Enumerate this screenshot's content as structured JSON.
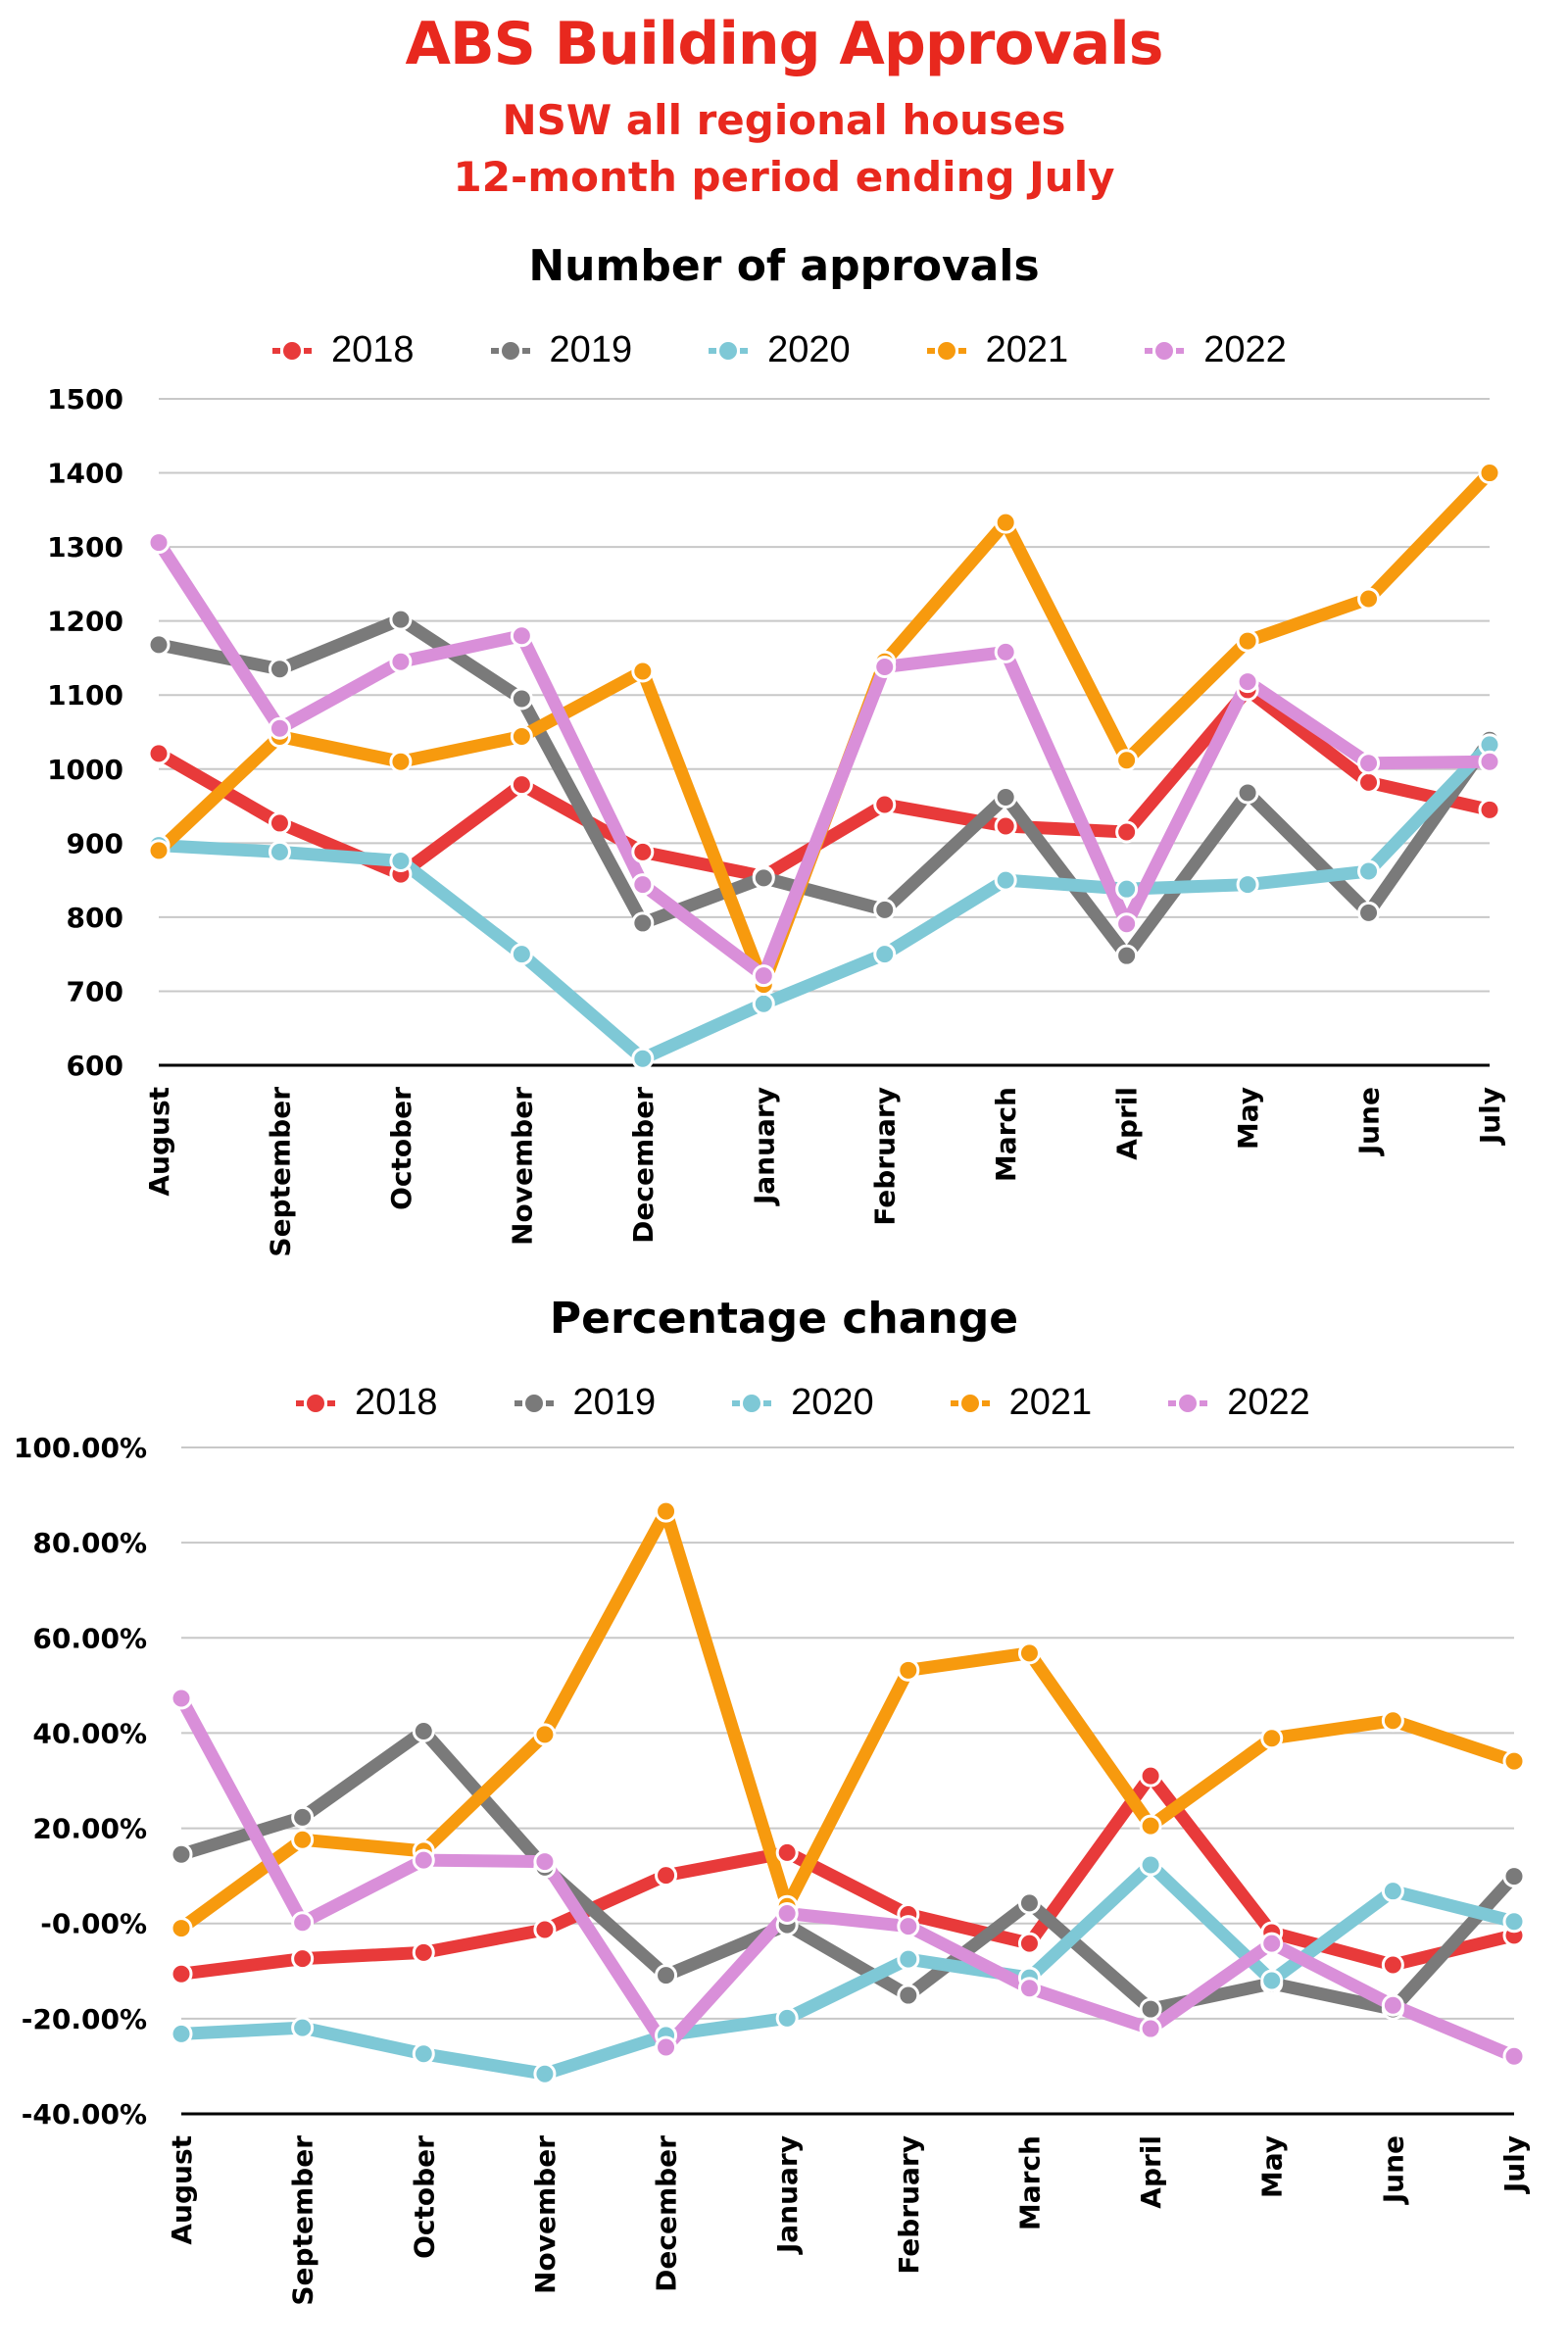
{
  "header": {
    "title": "ABS Building Approvals",
    "subtitle_1": "NSW all regional houses",
    "subtitle_2": "12-month period ending July"
  },
  "series_colors": {
    "2018": "#e83a3a",
    "2019": "#7a7a7a",
    "2020": "#7ec8d6",
    "2021": "#f79a0e",
    "2022": "#d98fd9"
  },
  "chart_data": [
    {
      "type": "line",
      "title": "Number of approvals",
      "xlabel": "",
      "ylabel": "",
      "categories": [
        "August",
        "September",
        "October",
        "November",
        "December",
        "January",
        "February",
        "March",
        "April",
        "May",
        "June",
        "July"
      ],
      "ylim": [
        600,
        1500
      ],
      "yticks": [
        600,
        700,
        800,
        900,
        1000,
        1100,
        1200,
        1300,
        1400,
        1500
      ],
      "ytick_labels": [
        "600",
        "700",
        "800",
        "900",
        "1000",
        "1100",
        "1200",
        "1300",
        "1400",
        "1500"
      ],
      "grid": true,
      "legend": "top",
      "series": [
        {
          "name": "2018",
          "values": [
            1021,
            927,
            858,
            979,
            888,
            855,
            952,
            923,
            915,
            1107,
            982,
            945
          ]
        },
        {
          "name": "2019",
          "values": [
            1168,
            1135,
            1202,
            1095,
            792,
            853,
            810,
            962,
            748,
            968,
            806,
            1039
          ]
        },
        {
          "name": "2020",
          "values": [
            897,
            888,
            876,
            750,
            609,
            683,
            750,
            850,
            838,
            844,
            862,
            1033
          ]
        },
        {
          "name": "2021",
          "values": [
            890,
            1044,
            1010,
            1044,
            1132,
            709,
            1145,
            1333,
            1012,
            1173,
            1230,
            1400
          ]
        },
        {
          "name": "2022",
          "values": [
            1306,
            1055,
            1145,
            1180,
            844,
            721,
            1138,
            1158,
            791,
            1118,
            1008,
            1010
          ]
        }
      ]
    },
    {
      "type": "line",
      "title": "Percentage change",
      "xlabel": "",
      "ylabel": "",
      "categories": [
        "August",
        "September",
        "October",
        "November",
        "December",
        "January",
        "February",
        "March",
        "April",
        "May",
        "June",
        "July"
      ],
      "ylim": [
        -40,
        100
      ],
      "yticks": [
        -40,
        -20,
        0,
        20,
        40,
        60,
        80,
        100
      ],
      "ytick_labels": [
        "-40.00%",
        "-20.00%",
        "-0.00%",
        "20.00%",
        "40.00%",
        "60.00%",
        "80.00%",
        "100.00%"
      ],
      "grid": true,
      "legend": "top",
      "series": [
        {
          "name": "2018",
          "values": [
            -10.6,
            -7.4,
            -6.1,
            -1.3,
            10.1,
            14.9,
            1.9,
            -4.2,
            31.0,
            -1.9,
            -8.7,
            -2.5
          ]
        },
        {
          "name": "2019",
          "values": [
            14.5,
            22.3,
            40.4,
            11.8,
            -10.9,
            -0.3,
            -15.1,
            4.3,
            -18.0,
            -12.6,
            -18.0,
            9.9
          ]
        },
        {
          "name": "2020",
          "values": [
            -23.2,
            -21.9,
            -27.4,
            -31.6,
            -23.5,
            -19.9,
            -7.5,
            -11.4,
            12.3,
            -12.0,
            6.8,
            0.4
          ]
        },
        {
          "name": "2021",
          "values": [
            -1.0,
            17.6,
            15.2,
            39.7,
            86.6,
            3.6,
            53.2,
            56.8,
            20.5,
            38.9,
            42.6,
            34.1
          ]
        },
        {
          "name": "2022",
          "values": [
            47.3,
            0.2,
            13.3,
            13.0,
            -26.0,
            2.1,
            -0.6,
            -13.6,
            -22.1,
            -4.2,
            -17.2,
            -27.9
          ]
        }
      ]
    }
  ]
}
